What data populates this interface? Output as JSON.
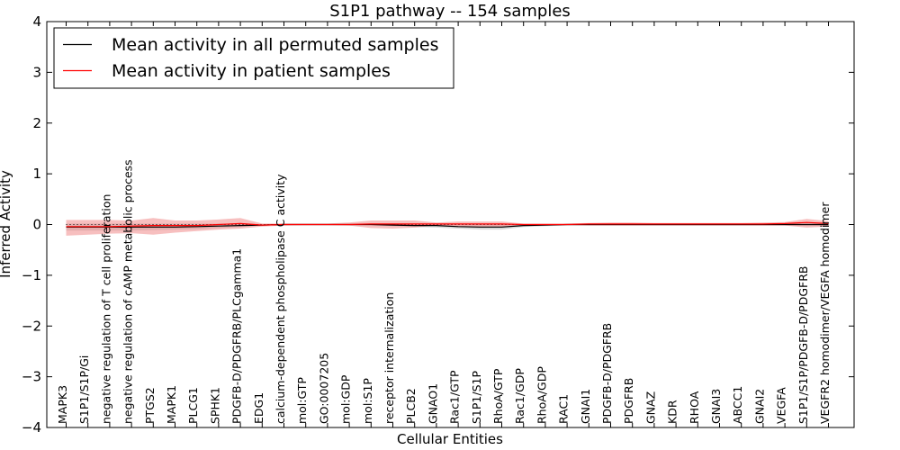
{
  "chart_data": {
    "type": "line",
    "title": "S1P1 pathway -- 154 samples",
    "xlabel": "Cellular Entities",
    "ylabel": "Inferred Activity",
    "ylim": [
      -4,
      4
    ],
    "yticks": [
      -4,
      -3,
      -2,
      -1,
      0,
      1,
      2,
      3,
      4
    ],
    "ytick_labels": [
      "−4",
      "−3",
      "−2",
      "−1",
      "0",
      "1",
      "2",
      "3",
      "4"
    ],
    "legend_position": "top-left",
    "colors": {
      "permuted": "#000000",
      "patient": "#ff0000",
      "patient_band": "#f08080",
      "permuted_band": "#bbbbbb"
    },
    "categories": [
      "MAPK3",
      "S1P1/S1P/Gi",
      "negative regulation of T cell proliferation",
      "negative regulation of cAMP metabolic process",
      "PTGS2",
      "MAPK1",
      "PLCG1",
      "SPHK1",
      "PDGFB-D/PDGFRB/PLCgamma1",
      "EDG1",
      "calcium-dependent phospholipase C activity",
      "mol:GTP",
      "GO:0007205",
      "mol:GDP",
      "mol:S1P",
      "receptor internalization",
      "PLCB2",
      "GNAO1",
      "Rac1/GTP",
      "S1P1/S1P",
      "RhoA/GTP",
      "Rac1/GDP",
      "RhoA/GDP",
      "RAC1",
      "GNAI1",
      "PDGFB-D/PDGFRB",
      "PDGFRB",
      "GNAZ",
      "KDR",
      "RHOA",
      "GNAI3",
      "ABCC1",
      "GNAI2",
      "VEGFA",
      "S1P1/S1P/PDGFB-D/PDGFRB",
      "VEGFR2 homodimer/VEGFA homodimer"
    ],
    "series": [
      {
        "name": "Mean activity in all permuted samples",
        "color": "#000000",
        "values": [
          -0.05,
          -0.05,
          -0.05,
          -0.05,
          -0.05,
          -0.05,
          -0.04,
          -0.03,
          -0.02,
          -0.01,
          0,
          0,
          0,
          0,
          0,
          -0.01,
          -0.02,
          -0.02,
          -0.04,
          -0.05,
          -0.05,
          -0.02,
          -0.01,
          0,
          0,
          0,
          0,
          0,
          0,
          0,
          0,
          0,
          0,
          0,
          0,
          0
        ],
        "band_low": [
          -0.12,
          -0.12,
          -0.12,
          -0.12,
          -0.11,
          -0.1,
          -0.09,
          -0.07,
          -0.05,
          -0.02,
          -0.01,
          -0.01,
          -0.01,
          -0.01,
          -0.01,
          -0.03,
          -0.05,
          -0.06,
          -0.08,
          -0.1,
          -0.1,
          -0.05,
          -0.03,
          -0.02,
          -0.02,
          -0.02,
          -0.02,
          -0.02,
          -0.02,
          -0.02,
          -0.02,
          -0.02,
          -0.02,
          -0.02,
          -0.03,
          -0.03
        ],
        "band_high": [
          0.02,
          0.02,
          0.02,
          0.02,
          0.02,
          0.02,
          0.02,
          0.02,
          0.02,
          0.01,
          0.01,
          0.01,
          0.01,
          0.01,
          0.01,
          0.01,
          0.01,
          0.01,
          0.01,
          0.01,
          0.01,
          0.01,
          0.01,
          0.01,
          0.01,
          0.01,
          0.01,
          0.01,
          0.01,
          0.01,
          0.01,
          0.01,
          0.01,
          0.01,
          0.02,
          0.02
        ]
      },
      {
        "name": "Mean activity in patient samples",
        "color": "#ff0000",
        "values": [
          -0.04,
          -0.04,
          -0.04,
          -0.03,
          -0.02,
          -0.02,
          -0.02,
          0,
          0.02,
          -0.01,
          0,
          0,
          0,
          0,
          0.01,
          0.01,
          0.01,
          0.01,
          0.01,
          0.01,
          0.01,
          0,
          0,
          0,
          0.01,
          0.01,
          0.01,
          0.01,
          0.01,
          0.01,
          0.01,
          0.01,
          0.01,
          0.02,
          0.04,
          0.02
        ],
        "band_low": [
          -0.22,
          -0.2,
          -0.18,
          -0.17,
          -0.2,
          -0.16,
          -0.13,
          -0.1,
          -0.08,
          -0.04,
          -0.02,
          -0.01,
          -0.01,
          -0.02,
          -0.07,
          -0.08,
          -0.06,
          -0.02,
          -0.05,
          -0.06,
          -0.05,
          -0.02,
          -0.01,
          -0.01,
          -0.02,
          -0.02,
          -0.02,
          -0.02,
          -0.02,
          -0.02,
          -0.02,
          -0.02,
          -0.02,
          -0.02,
          -0.06,
          -0.04
        ],
        "band_high": [
          0.09,
          0.09,
          0.09,
          0.08,
          0.13,
          0.08,
          0.08,
          0.1,
          0.13,
          0.02,
          0.02,
          0.02,
          0.02,
          0.04,
          0.08,
          0.08,
          0.08,
          0.04,
          0.06,
          0.06,
          0.06,
          0.02,
          0.02,
          0.02,
          0.03,
          0.04,
          0.04,
          0.03,
          0.03,
          0.03,
          0.03,
          0.03,
          0.04,
          0.05,
          0.11,
          0.07
        ]
      }
    ],
    "zero_reference": {
      "style": "dotted",
      "value": 0
    }
  }
}
